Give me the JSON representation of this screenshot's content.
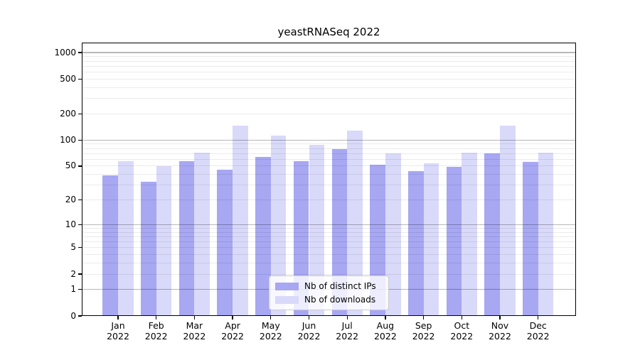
{
  "title": "yeastRNASeq 2022",
  "chart_data": {
    "type": "bar",
    "title": "yeastRNASeq 2022",
    "categories": [
      "Jan",
      "Feb",
      "Mar",
      "Apr",
      "May",
      "Jun",
      "Jul",
      "Aug",
      "Sep",
      "Oct",
      "Nov",
      "Dec"
    ],
    "category_year": "2022",
    "series": [
      {
        "name": "Nb of distinct IPs",
        "color": "#a7a7f2",
        "values": [
          39,
          33,
          57,
          45,
          64,
          57,
          79,
          52,
          44,
          49,
          70,
          56
        ]
      },
      {
        "name": "Nb of downloads",
        "color": "#d9d9f9",
        "values": [
          57,
          50,
          72,
          146,
          112,
          88,
          128,
          70,
          54,
          72,
          145,
          72
        ]
      }
    ],
    "xlabel": "",
    "ylabel": "",
    "yscale": "log1p",
    "ytick_values": [
      0,
      1,
      2,
      5,
      10,
      20,
      50,
      100,
      200,
      500,
      1000
    ],
    "ytick_labels": [
      "0",
      "1",
      "2",
      "5",
      "10",
      "20",
      "50",
      "100",
      "200",
      "500",
      "1000"
    ],
    "ylim": [
      0,
      1300
    ],
    "grid": "major-and-minor-horizontal",
    "grid_over_bars": true,
    "legend_position": "lower center",
    "colors": {
      "background": "#ffffff",
      "major_grid": "#b8b8b8",
      "minor_grid": "#ebebeb",
      "spine": "#000000",
      "text": "#000000"
    }
  }
}
